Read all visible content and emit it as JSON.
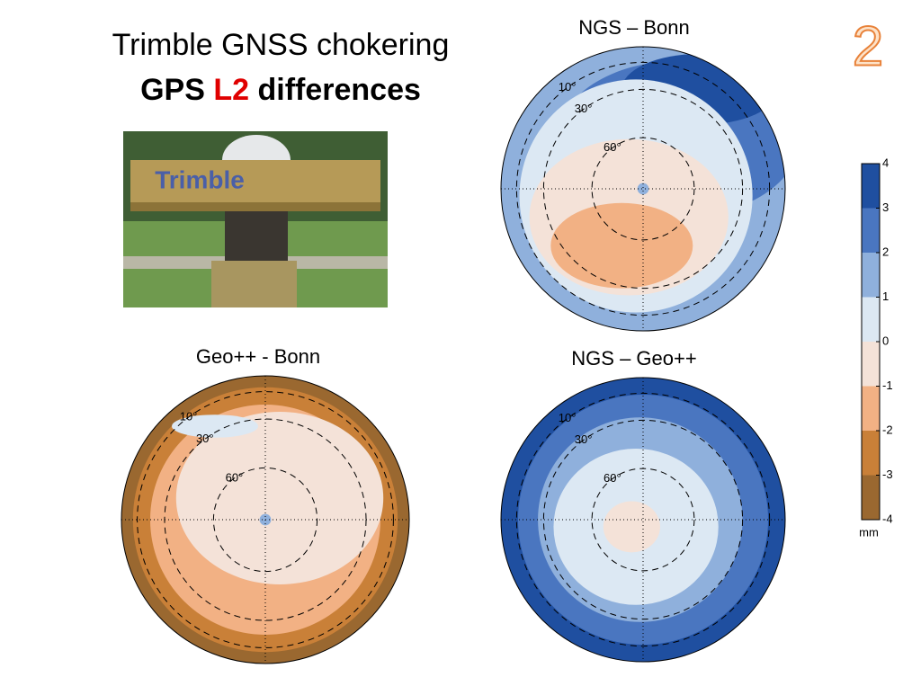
{
  "slide": {
    "number": "2",
    "title_line1": "Trimble GNSS chokering",
    "title_line2": {
      "prefix": "GPS",
      "highlight": "L2",
      "suffix": "differences"
    }
  },
  "photo": {
    "label": "Trimble"
  },
  "plots": [
    {
      "title": "NGS – Bonn",
      "rings": [
        "10°",
        "30°",
        "60°"
      ]
    },
    {
      "title": "Geo++ - Bonn",
      "rings": [
        "10°",
        "30°",
        "60°"
      ]
    },
    {
      "title": "NGS – Geo++",
      "rings": [
        "10°",
        "30°",
        "60°"
      ]
    }
  ],
  "colorbar": {
    "ticks": [
      4,
      3,
      2,
      1,
      0,
      -1,
      -2,
      -3,
      -4
    ],
    "unit": "mm"
  }
}
